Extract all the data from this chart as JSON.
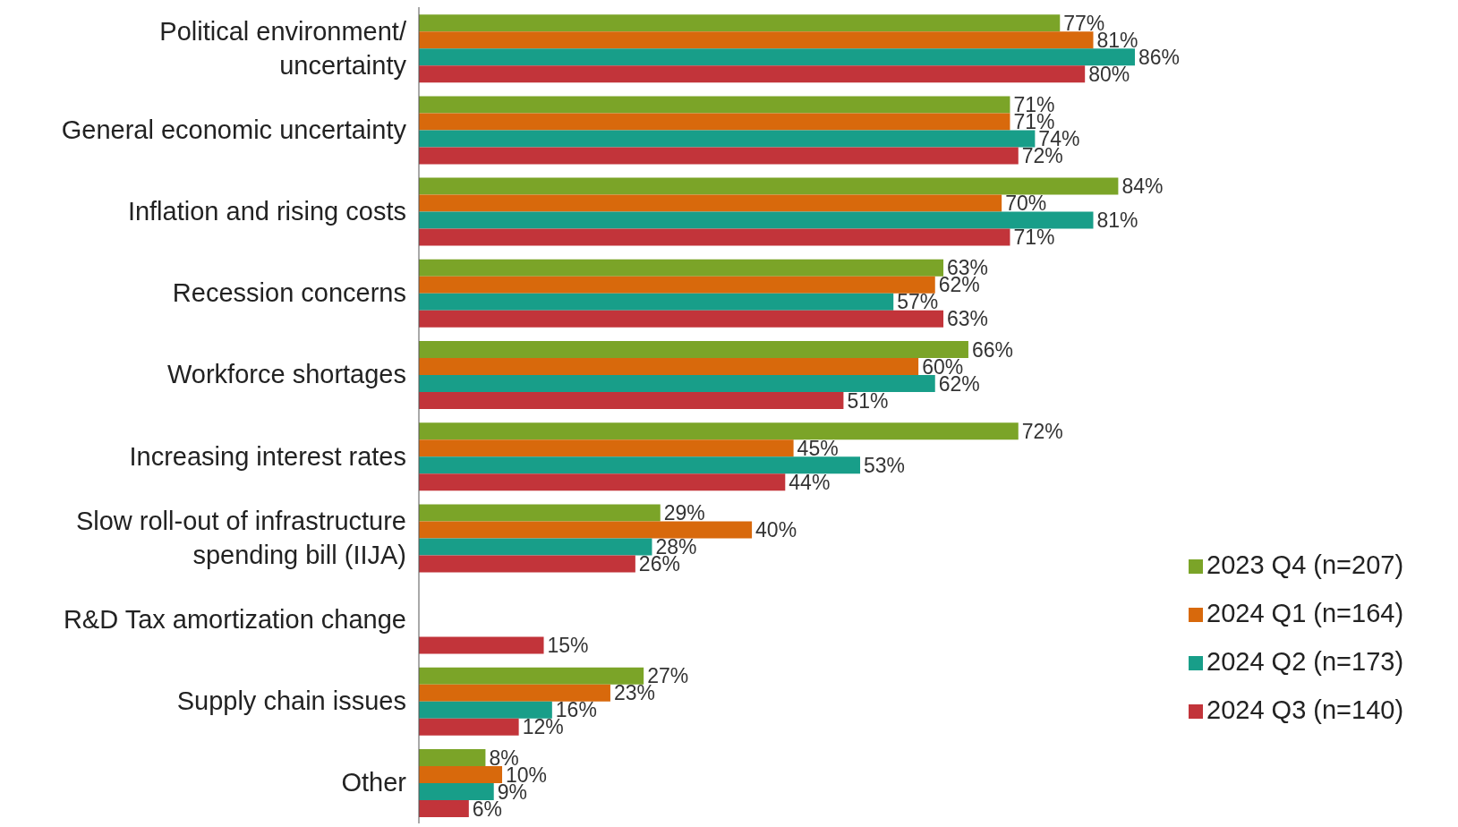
{
  "chart_data": {
    "type": "bar",
    "orientation": "horizontal",
    "categories": [
      "Political environment/ uncertainty",
      "General economic uncertainty",
      "Inflation and rising costs",
      "Recession concerns",
      "Workforce shortages",
      "Increasing interest rates",
      "Slow roll-out of infrastructure spending bill (IIJA)",
      "R&D Tax amortization change",
      "Supply chain issues",
      "Other"
    ],
    "series": [
      {
        "name": "2023 Q4 (n=207)",
        "color": "#7ba428",
        "values": [
          77,
          71,
          84,
          63,
          66,
          72,
          29,
          null,
          27,
          8
        ],
        "value_labels": [
          "77%",
          "71%",
          "84%",
          "63%",
          "66%",
          "72%",
          "29%",
          null,
          "27%",
          "8%"
        ]
      },
      {
        "name": "2024 Q1 (n=164)",
        "color": "#d8690c",
        "values": [
          81,
          71,
          70,
          62,
          60,
          45,
          40,
          null,
          23,
          10
        ],
        "value_labels": [
          "81%",
          "71%",
          "70%",
          "62%",
          "60%",
          "45%",
          "40%",
          null,
          "23%",
          "10%"
        ]
      },
      {
        "name": "2024 Q2 (n=173)",
        "color": "#189e89",
        "values": [
          86,
          74,
          81,
          57,
          62,
          53,
          28,
          null,
          16,
          9
        ],
        "value_labels": [
          "86%",
          "74%",
          "81%",
          "57%",
          "62%",
          "53%",
          "28%",
          null,
          "16%",
          "9%"
        ]
      },
      {
        "name": "2024 Q3 (n=140)",
        "color": "#c2343a",
        "values": [
          80,
          72,
          71,
          63,
          51,
          44,
          26,
          15,
          12,
          6
        ],
        "value_labels": [
          "80%",
          "72%",
          "71%",
          "63%",
          "51%",
          "44%",
          "26%",
          "15%",
          "12%",
          "6%"
        ]
      }
    ],
    "legend": "bottom right",
    "grid": false
  }
}
